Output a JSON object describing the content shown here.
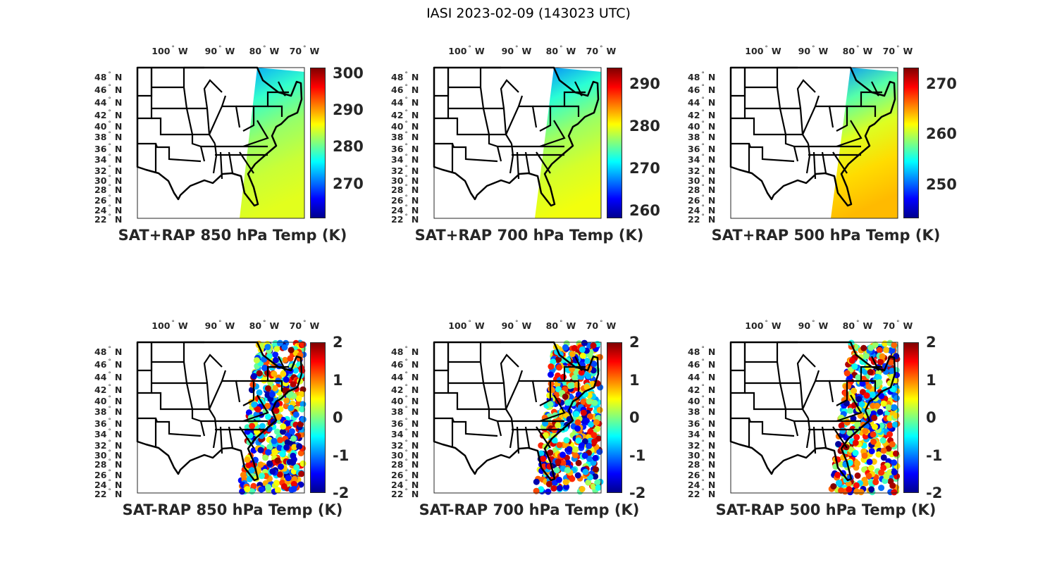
{
  "figure_title": "IASI 2023-02-09 (143023 UTC)",
  "lon_labels": [
    "100",
    "90",
    "80",
    "70"
  ],
  "lon_suffix": "W",
  "lat_labels": [
    "48",
    "46",
    "44",
    "42",
    "40",
    "38",
    "36",
    "34",
    "32",
    "30",
    "28",
    "26",
    "24",
    "22"
  ],
  "lat_suffix": "N",
  "colormap": [
    "#00008f",
    "#0000ff",
    "#00ffff",
    "#ffff00",
    "#ff0000",
    "#800000"
  ],
  "panels": [
    {
      "title": "SAT+RAP 850 hPa Temp (K)",
      "kind": "total",
      "colorbar": {
        "range": [
          260.6,
          301.5
        ],
        "ticks": [
          270,
          280,
          290,
          300
        ],
        "tick_labels": [
          "270",
          "280",
          "290",
          "300"
        ]
      },
      "typical_value": 281
    },
    {
      "title": "SAT+RAP 700 hPa Temp (K)",
      "kind": "total",
      "colorbar": {
        "range": [
          258.2,
          293.8
        ],
        "ticks": [
          260,
          270,
          280,
          290
        ],
        "tick_labels": [
          "260",
          "270",
          "280",
          "290"
        ]
      },
      "typical_value": 276
    },
    {
      "title": "SAT+RAP 500 hPa Temp (K)",
      "kind": "total",
      "colorbar": {
        "range": [
          243.3,
          273.2
        ],
        "ticks": [
          250,
          260,
          270
        ],
        "tick_labels": [
          "250",
          "260",
          "270"
        ]
      },
      "typical_value": 260
    },
    {
      "title": "SAT-RAP 850 hPa Temp (K)",
      "kind": "diff",
      "colorbar": {
        "range": [
          -2,
          2
        ],
        "ticks": [
          -2,
          -1,
          0,
          1,
          2
        ],
        "tick_labels": [
          "-2",
          "-1",
          "0",
          "1",
          "2"
        ]
      }
    },
    {
      "title": "SAT-RAP 700 hPa Temp (K)",
      "kind": "diff",
      "colorbar": {
        "range": [
          -2,
          2
        ],
        "ticks": [
          -2,
          -1,
          0,
          1,
          2
        ],
        "tick_labels": [
          "-2",
          "-1",
          "0",
          "1",
          "2"
        ]
      }
    },
    {
      "title": "SAT-RAP 500 hPa Temp (K)",
      "kind": "diff",
      "colorbar": {
        "range": [
          -2,
          2
        ],
        "ticks": [
          -2,
          -1,
          0,
          1,
          2
        ],
        "tick_labels": [
          "-2",
          "-1",
          "0",
          "1",
          "2"
        ]
      }
    }
  ]
}
